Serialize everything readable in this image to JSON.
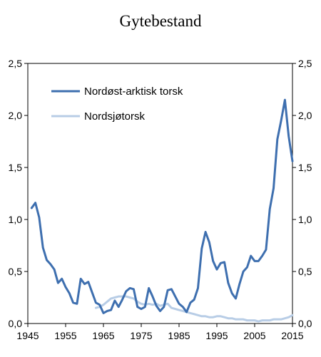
{
  "chart_data": {
    "type": "line",
    "title": "Gytebestand",
    "xlim": [
      1945,
      2015
    ],
    "ylim": [
      0,
      2.5
    ],
    "x_ticks": [
      1945,
      1955,
      1965,
      1975,
      1985,
      1995,
      2005,
      2015
    ],
    "y_ticks": [
      0,
      0.5,
      1.0,
      1.5,
      2.0,
      2.5
    ],
    "y_tick_labels": [
      "0,0",
      "0,5",
      "1,0",
      "1,5",
      "2,0",
      "2,5"
    ],
    "y_axis_right": true,
    "grid": false,
    "legend_position": "top-left",
    "series": [
      {
        "name": "Nordøst-arktisk torsk",
        "color": "#3e6faf",
        "x": [
          1946,
          1947,
          1948,
          1949,
          1950,
          1951,
          1952,
          1953,
          1954,
          1955,
          1956,
          1957,
          1958,
          1959,
          1960,
          1961,
          1962,
          1963,
          1964,
          1965,
          1966,
          1967,
          1968,
          1969,
          1970,
          1971,
          1972,
          1973,
          1974,
          1975,
          1976,
          1977,
          1978,
          1979,
          1980,
          1981,
          1982,
          1983,
          1984,
          1985,
          1986,
          1987,
          1988,
          1989,
          1990,
          1991,
          1992,
          1993,
          1994,
          1995,
          1996,
          1997,
          1998,
          1999,
          2000,
          2001,
          2002,
          2003,
          2004,
          2005,
          2006,
          2007,
          2008,
          2009,
          2010,
          2011,
          2012,
          2013,
          2014,
          2015
        ],
        "values": [
          1.11,
          1.16,
          1.02,
          0.73,
          0.61,
          0.57,
          0.52,
          0.39,
          0.43,
          0.35,
          0.29,
          0.2,
          0.19,
          0.43,
          0.38,
          0.4,
          0.3,
          0.2,
          0.18,
          0.1,
          0.12,
          0.13,
          0.22,
          0.16,
          0.23,
          0.31,
          0.34,
          0.33,
          0.16,
          0.14,
          0.16,
          0.34,
          0.26,
          0.17,
          0.12,
          0.16,
          0.32,
          0.33,
          0.26,
          0.19,
          0.16,
          0.11,
          0.2,
          0.23,
          0.34,
          0.72,
          0.88,
          0.78,
          0.6,
          0.52,
          0.58,
          0.59,
          0.39,
          0.29,
          0.24,
          0.38,
          0.5,
          0.54,
          0.65,
          0.6,
          0.6,
          0.65,
          0.71,
          1.1,
          1.3,
          1.77,
          1.95,
          2.15,
          1.8,
          1.56
        ]
      },
      {
        "name": "Nordsjøtorsk",
        "color": "#b8cde6",
        "x": [
          1963,
          1964,
          1965,
          1966,
          1967,
          1968,
          1969,
          1970,
          1971,
          1972,
          1973,
          1974,
          1975,
          1976,
          1977,
          1978,
          1979,
          1980,
          1981,
          1982,
          1983,
          1984,
          1985,
          1986,
          1987,
          1988,
          1989,
          1990,
          1991,
          1992,
          1993,
          1994,
          1995,
          1996,
          1997,
          1998,
          1999,
          2000,
          2001,
          2002,
          2003,
          2004,
          2005,
          2006,
          2007,
          2008,
          2009,
          2010,
          2011,
          2012,
          2013,
          2014,
          2015
        ],
        "values": [
          0.15,
          0.16,
          0.18,
          0.21,
          0.24,
          0.25,
          0.26,
          0.26,
          0.26,
          0.25,
          0.24,
          0.21,
          0.19,
          0.18,
          0.19,
          0.18,
          0.19,
          0.17,
          0.18,
          0.19,
          0.15,
          0.14,
          0.13,
          0.12,
          0.11,
          0.1,
          0.09,
          0.08,
          0.07,
          0.07,
          0.06,
          0.06,
          0.07,
          0.07,
          0.06,
          0.05,
          0.05,
          0.04,
          0.04,
          0.04,
          0.03,
          0.03,
          0.03,
          0.02,
          0.03,
          0.03,
          0.03,
          0.04,
          0.04,
          0.04,
          0.05,
          0.06,
          0.08
        ]
      }
    ]
  }
}
